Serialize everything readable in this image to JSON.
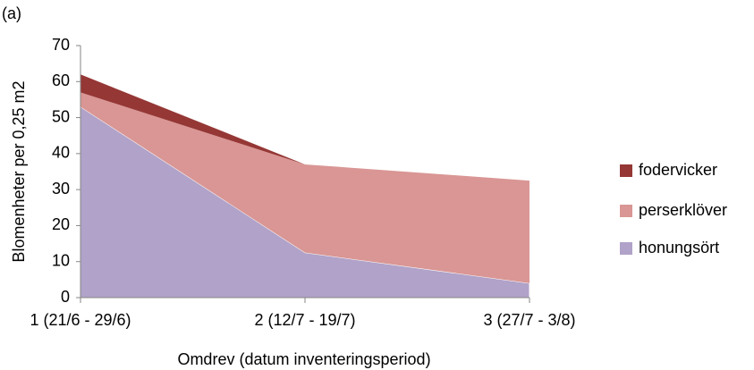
{
  "chart_data": {
    "type": "stacked-area",
    "annotation": "(a)",
    "y_label": "Blomenheter per 0,25 m2",
    "x_label": "Omdrev (datum inventeringsperiod)",
    "categories": [
      "1 (21/6 - 29/6)",
      "2 (12/7 - 19/7)",
      "3 (27/7 - 3/8)"
    ],
    "series": [
      {
        "name": "honungsört",
        "color": "#b0a2c8",
        "values": [
          53,
          12.5,
          4
        ]
      },
      {
        "name": "perserklöver",
        "color": "#d99694",
        "values": [
          4,
          24.5,
          28.5
        ]
      },
      {
        "name": "fodervicker",
        "color": "#953735",
        "values": [
          5,
          0,
          0
        ]
      }
    ],
    "ylim": [
      0,
      70
    ],
    "yticks": [
      0,
      10,
      20,
      30,
      40,
      50,
      60,
      70
    ],
    "legend": "right"
  }
}
